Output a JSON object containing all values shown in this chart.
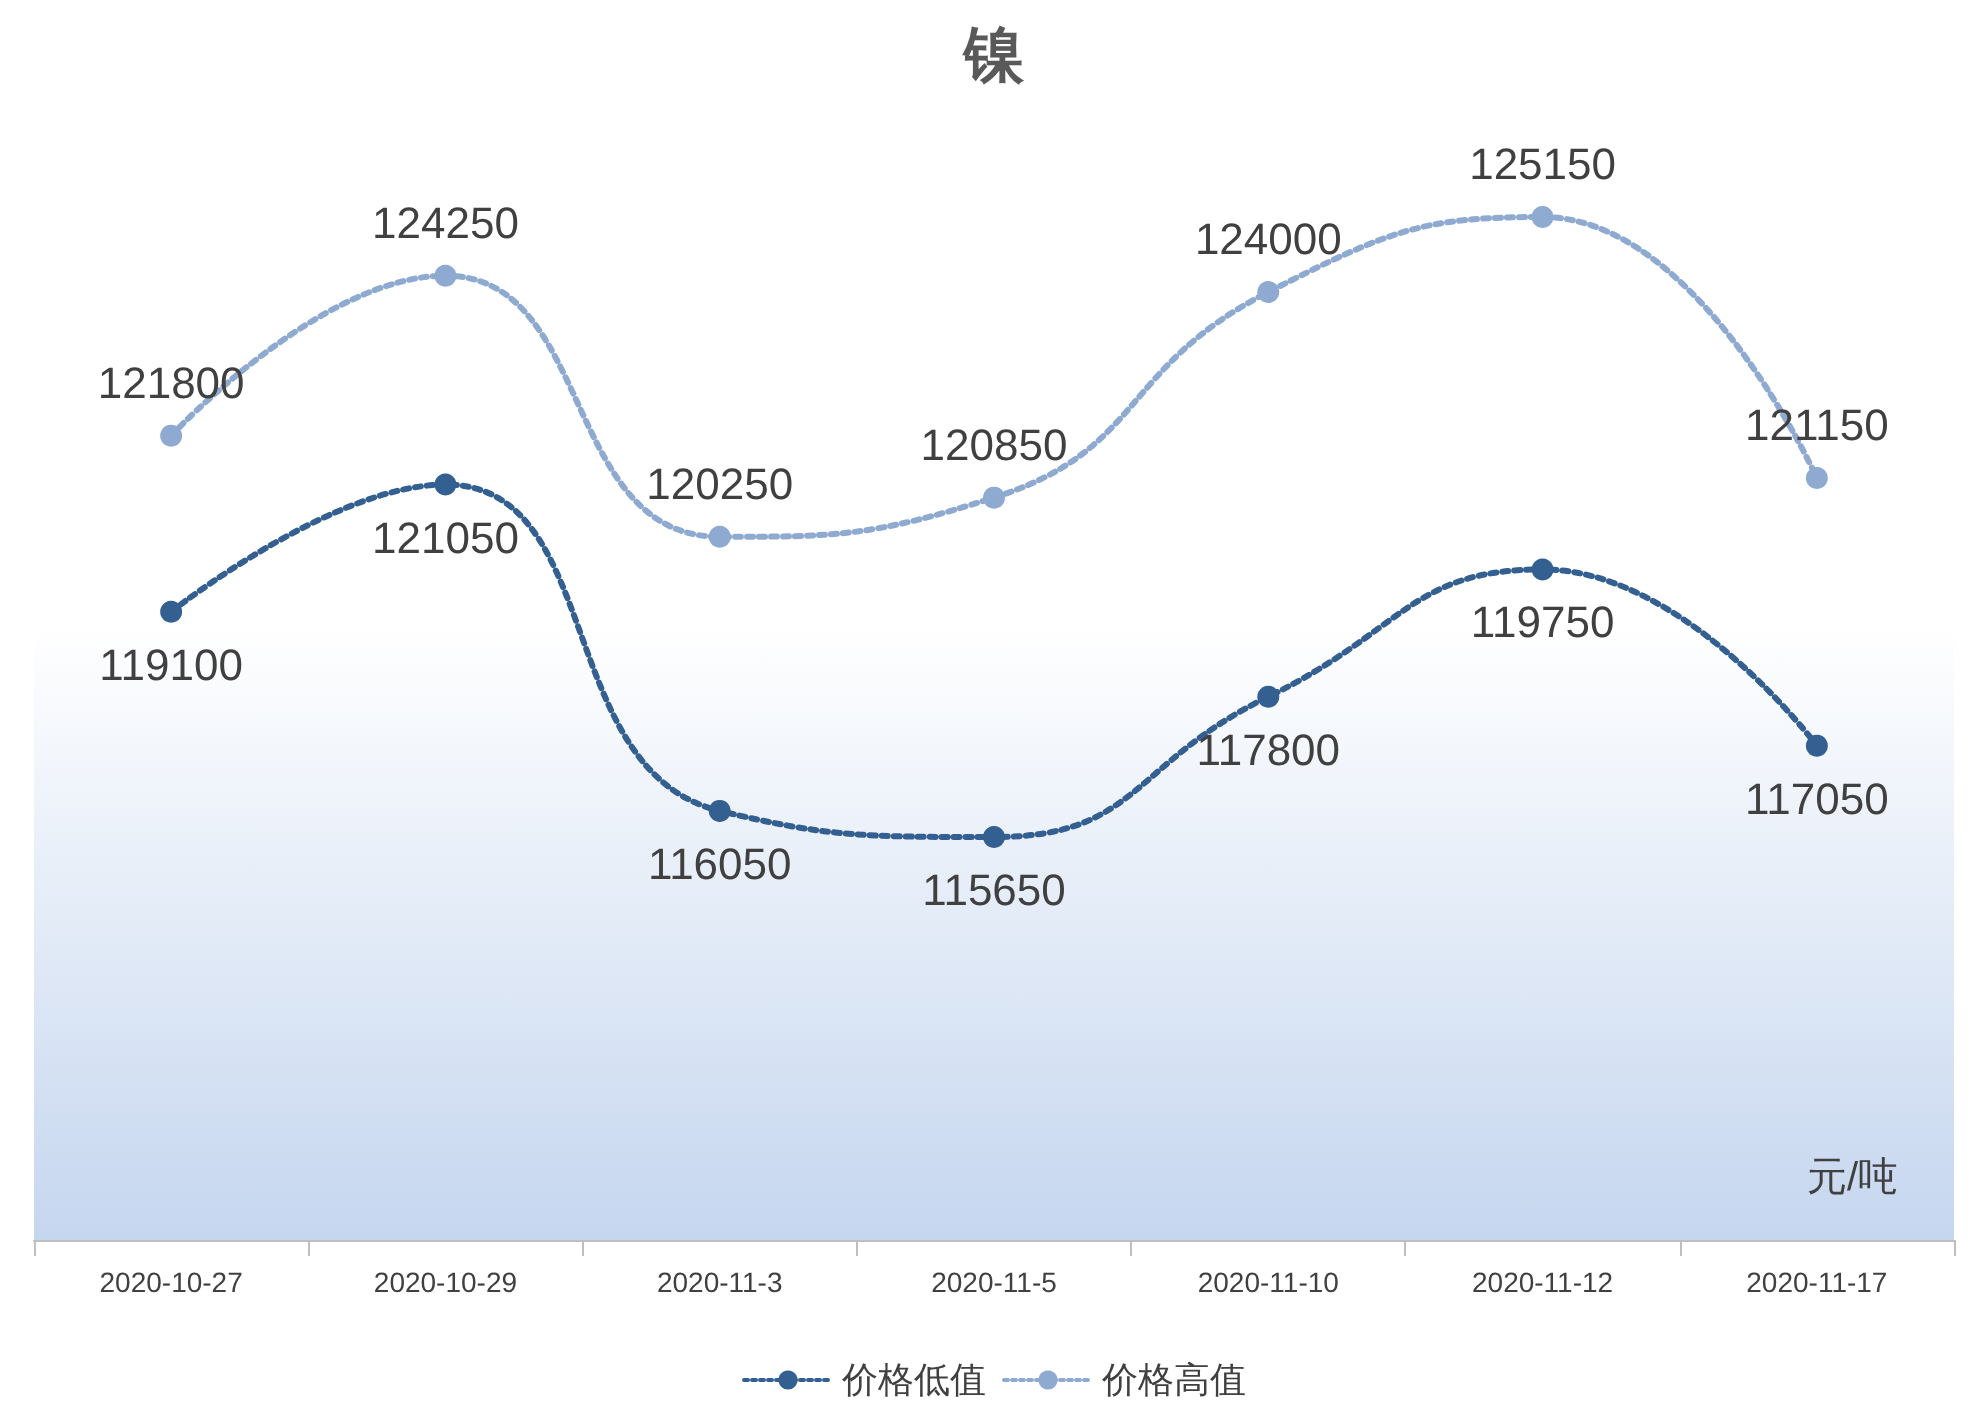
{
  "chart_data": {
    "type": "line",
    "title": "镍",
    "categories": [
      "2020-10-27",
      "2020-10-29",
      "2020-11-3",
      "2020-11-5",
      "2020-11-10",
      "2020-11-12",
      "2020-11-17"
    ],
    "series": [
      {
        "name": "价格低值",
        "color": "#335f91",
        "values": [
          119100,
          121050,
          116050,
          115650,
          117800,
          119750,
          117050
        ]
      },
      {
        "name": "价格高值",
        "color": "#8faad0",
        "values": [
          121800,
          124250,
          120250,
          120850,
          124000,
          125150,
          121150
        ]
      }
    ],
    "annotations": [
      "元/吨"
    ],
    "data_labels": true,
    "marker": "circle",
    "line_style": "dotted",
    "legend": "bottom",
    "grid": false
  }
}
